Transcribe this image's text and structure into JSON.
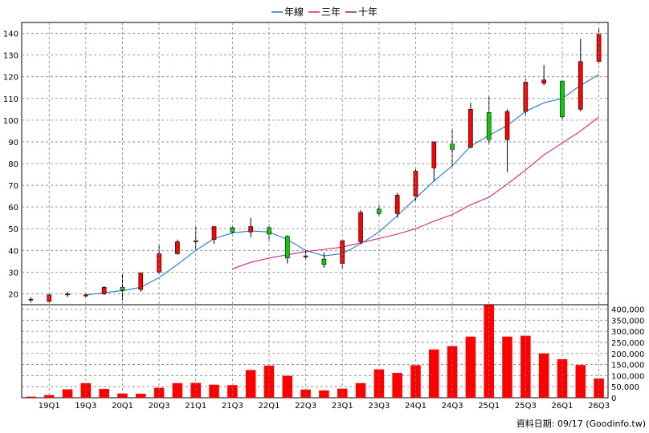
{
  "legend": {
    "items": [
      {
        "name": "年線",
        "color": "#1f78d0"
      },
      {
        "name": "三年",
        "color": "#d6246e"
      },
      {
        "name": "十年",
        "color": "#8b2252"
      }
    ]
  },
  "footer": {
    "text": "資料日期: 09/17  (Goodinfo.tw)"
  },
  "colors": {
    "up": "#ff0000",
    "down": "#00d000",
    "volume": "#ff0000",
    "grid": "#808080"
  },
  "chart_data": [
    {
      "type": "candlestick",
      "title": "",
      "grid": true,
      "legend_position": "top-center",
      "ylim": [
        15,
        145
      ],
      "yticks": [
        20,
        30,
        40,
        50,
        60,
        70,
        80,
        90,
        100,
        110,
        120,
        130,
        140
      ],
      "x_tick_labels": [
        {
          "label": "19Q1",
          "index": 1
        },
        {
          "label": "19Q3",
          "index": 3
        },
        {
          "label": "20Q1",
          "index": 5
        },
        {
          "label": "20Q3",
          "index": 7
        },
        {
          "label": "21Q1",
          "index": 9
        },
        {
          "label": "21Q3",
          "index": 11
        },
        {
          "label": "22Q1",
          "index": 13
        },
        {
          "label": "22Q3",
          "index": 15
        },
        {
          "label": "23Q1",
          "index": 17
        },
        {
          "label": "23Q3",
          "index": 19
        },
        {
          "label": "24Q1",
          "index": 21
        },
        {
          "label": "24Q3",
          "index": 23
        },
        {
          "label": "25Q1",
          "index": 25
        },
        {
          "label": "25Q3",
          "index": 27
        },
        {
          "label": "26Q1",
          "index": 29
        },
        {
          "label": "26Q3",
          "index": 31
        }
      ],
      "candles": [
        {
          "o": 17.5,
          "h": 18.5,
          "l": 16,
          "c": 17.5
        },
        {
          "o": 16.5,
          "h": 20,
          "l": 16,
          "c": 19.5
        },
        {
          "o": 19.5,
          "h": 21,
          "l": 18.5,
          "c": 20
        },
        {
          "o": 19,
          "h": 20,
          "l": 18.5,
          "c": 19.5
        },
        {
          "o": 20,
          "h": 23.5,
          "l": 19.5,
          "c": 23
        },
        {
          "o": 23,
          "h": 29,
          "l": 17,
          "c": 21.5
        },
        {
          "o": 22,
          "h": 30,
          "l": 21,
          "c": 29.5
        },
        {
          "o": 30,
          "h": 43,
          "l": 29,
          "c": 38.5
        },
        {
          "o": 38.5,
          "h": 45,
          "l": 38,
          "c": 44
        },
        {
          "o": 44,
          "h": 51,
          "l": 40,
          "c": 44.5
        },
        {
          "o": 45,
          "h": 51,
          "l": 43,
          "c": 51
        },
        {
          "o": 50.5,
          "h": 51,
          "l": 48,
          "c": 48.5
        },
        {
          "o": 48.5,
          "h": 55,
          "l": 46,
          "c": 51
        },
        {
          "o": 50.5,
          "h": 52,
          "l": 44,
          "c": 47.5
        },
        {
          "o": 46.5,
          "h": 47,
          "l": 34,
          "c": 36.5
        },
        {
          "o": 37,
          "h": 40,
          "l": 35.5,
          "c": 37.5
        },
        {
          "o": 36,
          "h": 39,
          "l": 32,
          "c": 33.5
        },
        {
          "o": 34,
          "h": 45,
          "l": 32,
          "c": 44.5
        },
        {
          "o": 44,
          "h": 58.5,
          "l": 43,
          "c": 57.5
        },
        {
          "o": 59,
          "h": 61,
          "l": 56,
          "c": 57
        },
        {
          "o": 57,
          "h": 66.5,
          "l": 55,
          "c": 65.5
        },
        {
          "o": 65,
          "h": 77.5,
          "l": 63,
          "c": 76.5
        },
        {
          "o": 78,
          "h": 90,
          "l": 72,
          "c": 90
        },
        {
          "o": 89,
          "h": 96,
          "l": 79,
          "c": 86.5
        },
        {
          "o": 87.5,
          "h": 108,
          "l": 87,
          "c": 105
        },
        {
          "o": 103.5,
          "h": 111,
          "l": 89,
          "c": 91
        },
        {
          "o": 91,
          "h": 105,
          "l": 76,
          "c": 104
        },
        {
          "o": 104,
          "h": 119,
          "l": 102,
          "c": 117.5
        },
        {
          "o": 117,
          "h": 125.5,
          "l": 116,
          "c": 118.5
        },
        {
          "o": 118,
          "h": 118.5,
          "l": 100.5,
          "c": 101.5
        },
        {
          "o": 105,
          "h": 137.5,
          "l": 104,
          "c": 127
        },
        {
          "o": 127,
          "h": 142.5,
          "l": 126,
          "c": 139.5
        }
      ],
      "series": [
        {
          "name": "年線",
          "x": [
            3,
            4,
            5,
            6,
            7,
            8,
            9,
            10,
            11,
            12,
            13,
            14,
            15,
            16,
            17,
            18,
            19,
            20,
            21,
            22,
            23,
            24,
            25,
            26,
            27,
            28,
            29,
            30,
            31
          ],
          "values": [
            19.5,
            20.5,
            21.5,
            23,
            27.5,
            33.5,
            40,
            45.5,
            48,
            49,
            48.5,
            45,
            40,
            37.5,
            38.5,
            43,
            48.5,
            56,
            64,
            72,
            79,
            88,
            93,
            97.5,
            104,
            108,
            110,
            116,
            121
          ]
        },
        {
          "name": "三年",
          "x": [
            11,
            12,
            13,
            14,
            15,
            16,
            17,
            18,
            19,
            20,
            21,
            22,
            23,
            24,
            25,
            26,
            27,
            28,
            29,
            30,
            31
          ],
          "values": [
            31.5,
            34.5,
            36.5,
            38,
            39.5,
            40.5,
            41.5,
            43.5,
            45.5,
            47.5,
            50,
            53.5,
            56.5,
            61,
            64.5,
            70.5,
            77,
            84,
            89.5,
            95,
            101.5
          ]
        }
      ]
    },
    {
      "type": "bar",
      "title": "",
      "grid": true,
      "ylim": [
        0,
        420000
      ],
      "yticks": [
        0,
        50000,
        100000,
        150000,
        200000,
        250000,
        300000,
        350000,
        400000
      ],
      "ytick_labels": [
        "0",
        "50,000",
        "100,000",
        "150,000",
        "200,000",
        "250,000",
        "300,000",
        "350,000",
        "400,000"
      ],
      "values": [
        5000,
        12000,
        38000,
        66000,
        40000,
        19000,
        18000,
        45000,
        66000,
        67000,
        59000,
        57000,
        125000,
        145000,
        99000,
        37000,
        33000,
        41000,
        66000,
        128000,
        112000,
        147000,
        218000,
        233000,
        276000,
        418000,
        276000,
        280000,
        200000,
        174000,
        148000,
        87000
      ]
    }
  ]
}
